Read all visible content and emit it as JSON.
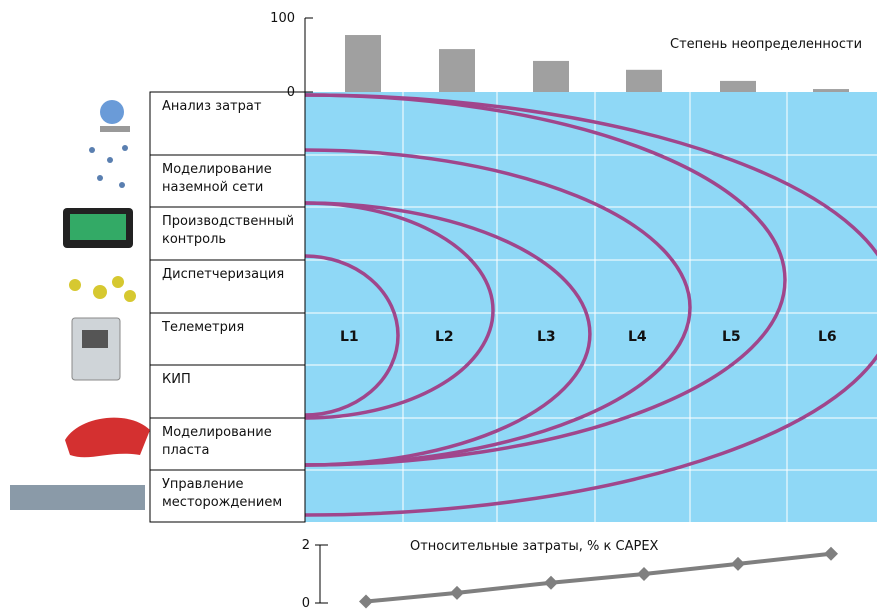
{
  "chart_data": [
    {
      "type": "bar",
      "title": "Степень неопределенности",
      "categories": [
        null,
        null,
        null,
        null,
        null,
        null
      ],
      "values": [
        77,
        58,
        42,
        30,
        15,
        4
      ],
      "color": "#a0a0a0",
      "ylim": [
        0,
        100
      ],
      "yticks": [
        0,
        100
      ]
    },
    {
      "type": "line",
      "title": "Относительные затраты,  % к  CAPEX",
      "categories": [
        null,
        null,
        null,
        null,
        null,
        null
      ],
      "values": [
        0.05,
        0.35,
        0.7,
        1.0,
        1.35,
        1.7
      ],
      "color": "#7f7f7f",
      "ylim": [
        0,
        2
      ],
      "yticks": [
        0,
        2
      ]
    }
  ],
  "rows": [
    [
      "Анализ затрат"
    ],
    [
      "Моделирование",
      "наземной сети"
    ],
    [
      "Производственный",
      "контроль"
    ],
    [
      "Диспетчеризация"
    ],
    [
      "Телеметрия"
    ],
    [
      "КИП"
    ],
    [
      "Моделирование",
      "пласта"
    ],
    [
      "Управление",
      "месторождением"
    ]
  ],
  "levels": [
    "L1",
    "L2",
    "L3",
    "L4",
    "L5",
    "L6"
  ]
}
